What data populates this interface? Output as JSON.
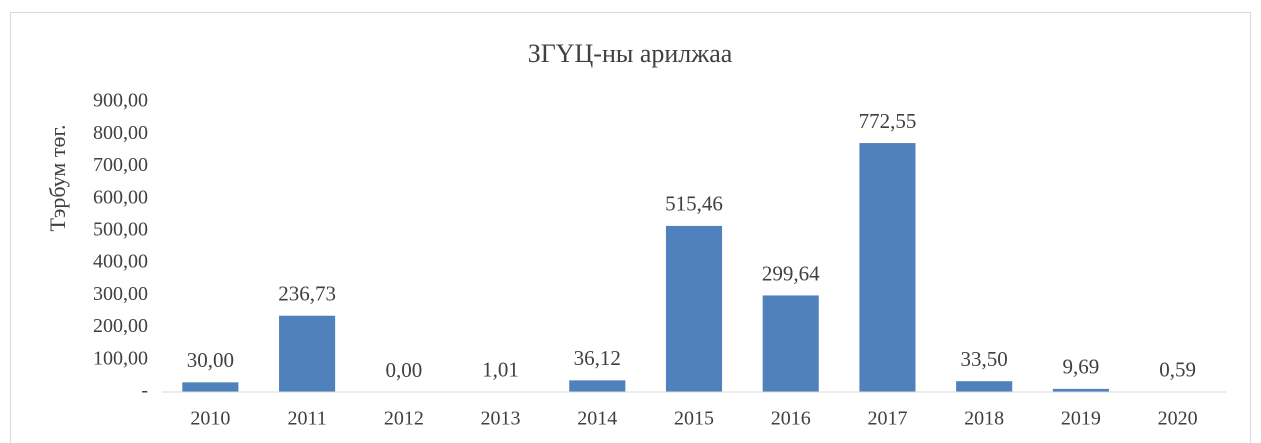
{
  "chart_data": {
    "type": "bar",
    "title": "ЗГҮЦ-ны арилжаа",
    "y_label": "Тэрбум төг.",
    "categories": [
      "2010",
      "2011",
      "2012",
      "2013",
      "2014",
      "2015",
      "2016",
      "2017",
      "2018",
      "2019",
      "2020"
    ],
    "values": [
      30.0,
      236.73,
      0.0,
      1.01,
      36.12,
      515.46,
      299.64,
      772.55,
      33.5,
      9.69,
      0.59
    ],
    "value_labels": [
      "30,00",
      "236,73",
      "0,00",
      "1,01",
      "36,12",
      "515,46",
      "299,64",
      "772,55",
      "33,50",
      "9,69",
      "0,59"
    ],
    "color": "#4f81bd",
    "ylim": [
      0,
      900
    ],
    "yticks": [
      {
        "value": 0,
        "label": "-"
      },
      {
        "value": 100,
        "label": "100,00"
      },
      {
        "value": 200,
        "label": "200,00"
      },
      {
        "value": 300,
        "label": "300,00"
      },
      {
        "value": 400,
        "label": "400,00"
      },
      {
        "value": 500,
        "label": "500,00"
      },
      {
        "value": 600,
        "label": "600,00"
      },
      {
        "value": 700,
        "label": "700,00"
      },
      {
        "value": 800,
        "label": "800,00"
      },
      {
        "value": 900,
        "label": "900,00"
      }
    ],
    "grid": false
  }
}
